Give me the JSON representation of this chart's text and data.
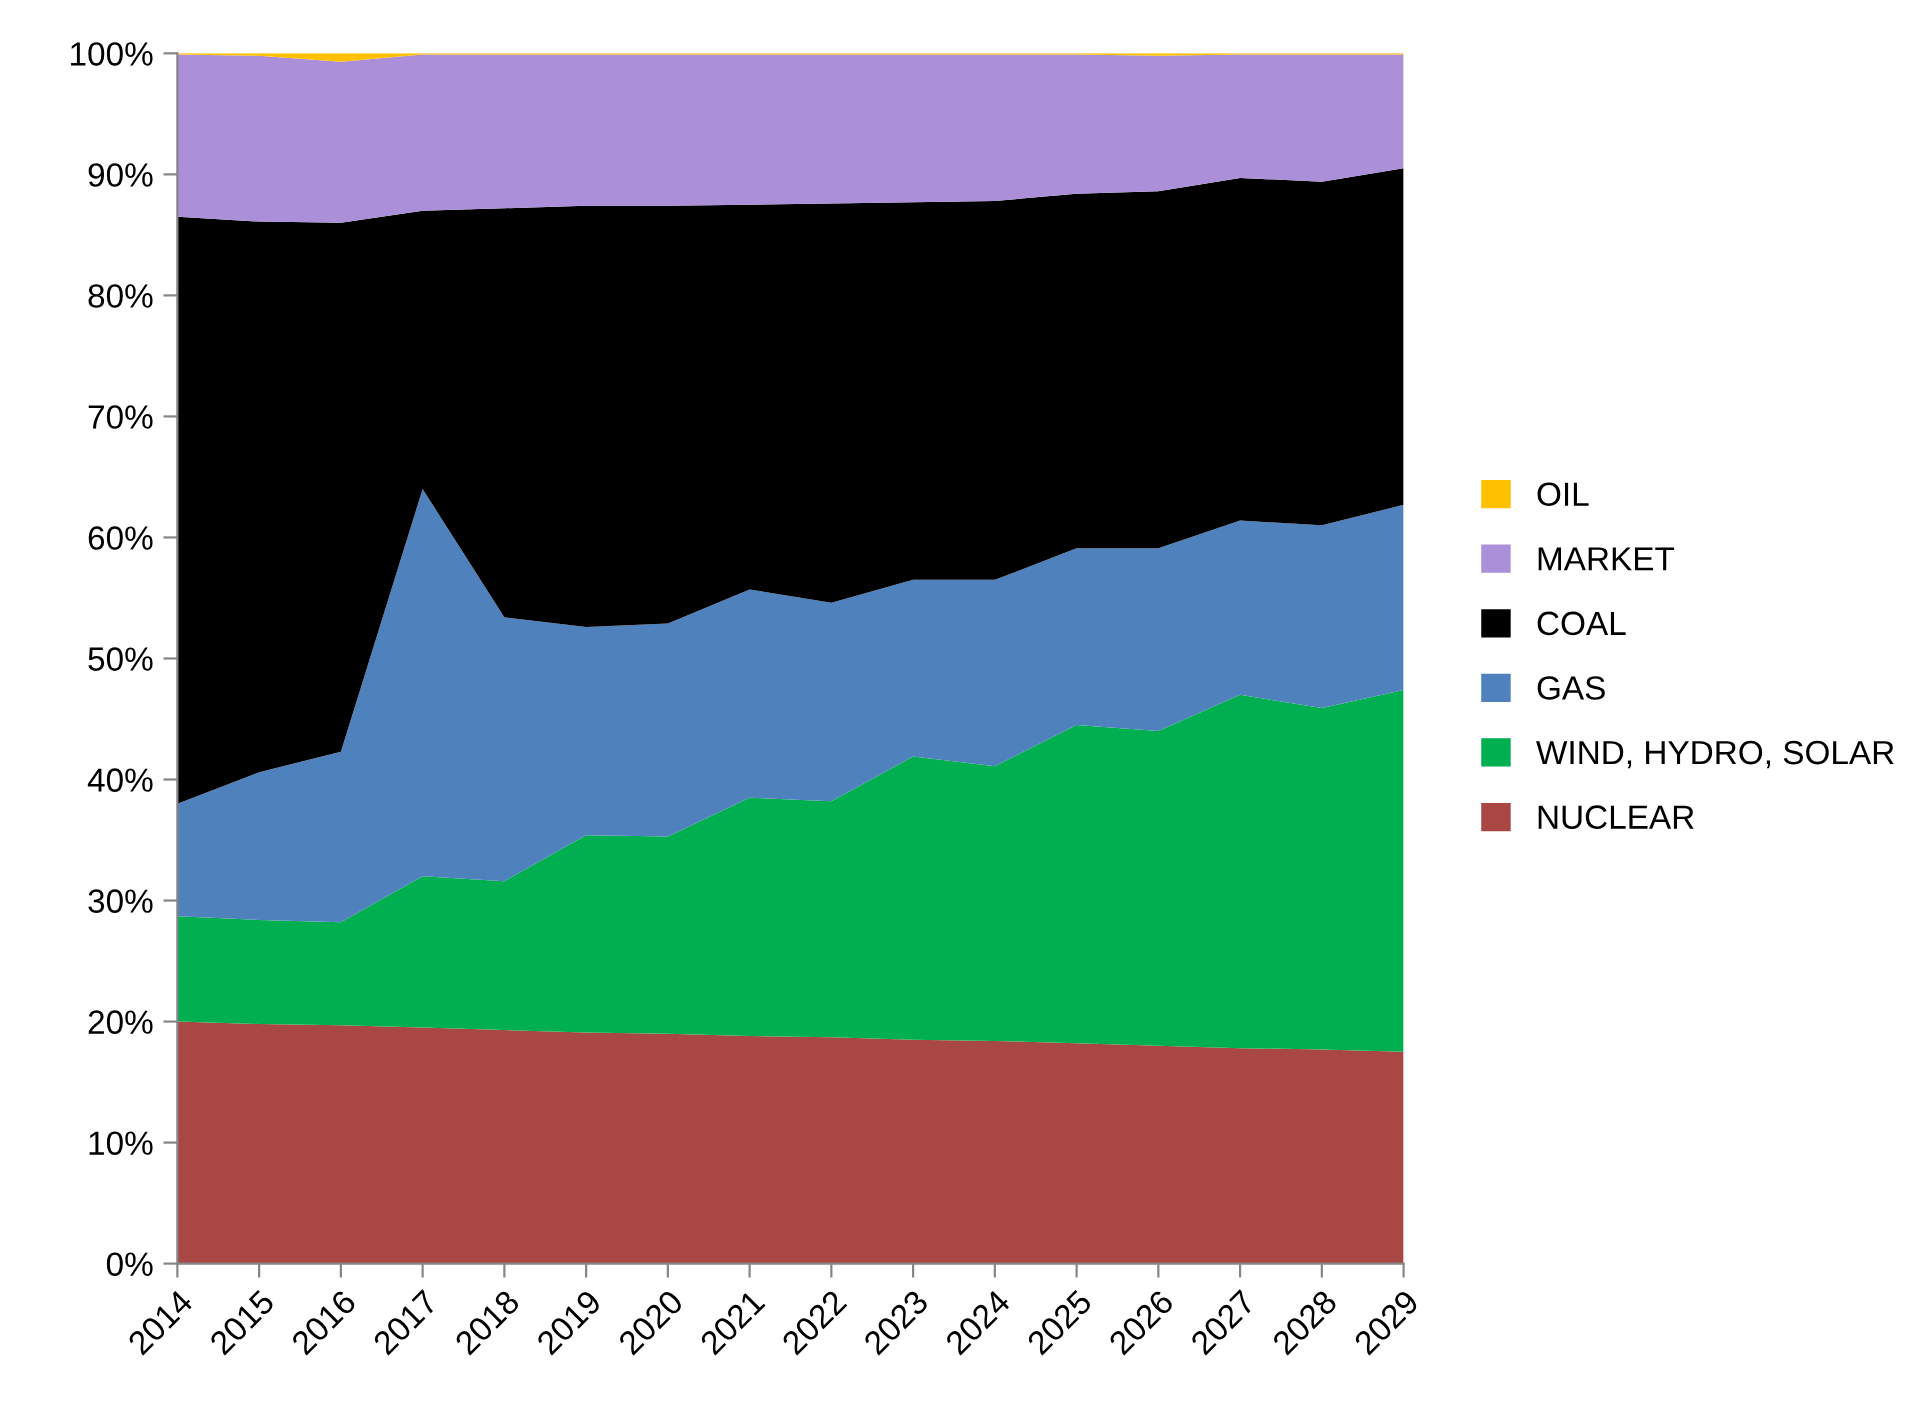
{
  "chart_data": {
    "type": "area",
    "stacked": true,
    "categories": [
      "2014",
      "2015",
      "2016",
      "2017",
      "2018",
      "2019",
      "2020",
      "2021",
      "2022",
      "2023",
      "2024",
      "2025",
      "2026",
      "2027",
      "2028",
      "2029"
    ],
    "ylim": [
      0,
      100
    ],
    "yticks": [
      {
        "value": 0,
        "label": "0%"
      },
      {
        "value": 10,
        "label": "10%"
      },
      {
        "value": 20,
        "label": "20%"
      },
      {
        "value": 30,
        "label": "30%"
      },
      {
        "value": 40,
        "label": "40%"
      },
      {
        "value": 50,
        "label": "50%"
      },
      {
        "value": 60,
        "label": "60%"
      },
      {
        "value": 70,
        "label": "70%"
      },
      {
        "value": 80,
        "label": "80%"
      },
      {
        "value": 90,
        "label": "90%"
      },
      {
        "value": 100,
        "label": "100%"
      }
    ],
    "grid": false,
    "legend": "right",
    "series": [
      {
        "name": "NUCLEAR",
        "color": "#a94744",
        "values": [
          20.0,
          19.8,
          19.7,
          19.5,
          19.3,
          19.1,
          19.0,
          18.8,
          18.7,
          18.5,
          18.4,
          18.2,
          18.0,
          17.8,
          17.7,
          17.5
        ]
      },
      {
        "name": "WIND, HYDRO, SOLAR",
        "color": "#00b050",
        "values": [
          8.7,
          8.6,
          8.5,
          12.5,
          12.3,
          16.3,
          16.3,
          19.7,
          19.5,
          23.4,
          22.7,
          26.3,
          26.0,
          29.2,
          28.2,
          29.9
        ]
      },
      {
        "name": "GAS",
        "color": "#4f81bd",
        "values": [
          9.3,
          12.2,
          14.1,
          32.0,
          21.8,
          17.2,
          17.6,
          17.2,
          16.4,
          14.6,
          15.4,
          14.6,
          15.1,
          14.4,
          15.1,
          15.3
        ]
      },
      {
        "name": "COAL",
        "color": "#000000",
        "values": [
          48.5,
          45.5,
          43.7,
          23.0,
          33.8,
          34.8,
          34.5,
          31.8,
          33.0,
          31.2,
          31.3,
          29.3,
          29.5,
          28.3,
          28.4,
          27.8
        ]
      },
      {
        "name": "MARKET",
        "color": "#ab8fd9",
        "values": [
          13.4,
          13.7,
          13.3,
          12.9,
          12.7,
          12.5,
          12.5,
          12.4,
          12.3,
          12.2,
          12.1,
          11.5,
          11.2,
          10.2,
          10.5,
          9.4
        ]
      },
      {
        "name": "OIL",
        "color": "#ffc000",
        "values": [
          0.1,
          0.2,
          0.7,
          0.1,
          0.1,
          0.1,
          0.1,
          0.1,
          0.1,
          0.1,
          0.1,
          0.1,
          0.2,
          0.1,
          0.1,
          0.1
        ]
      }
    ]
  }
}
